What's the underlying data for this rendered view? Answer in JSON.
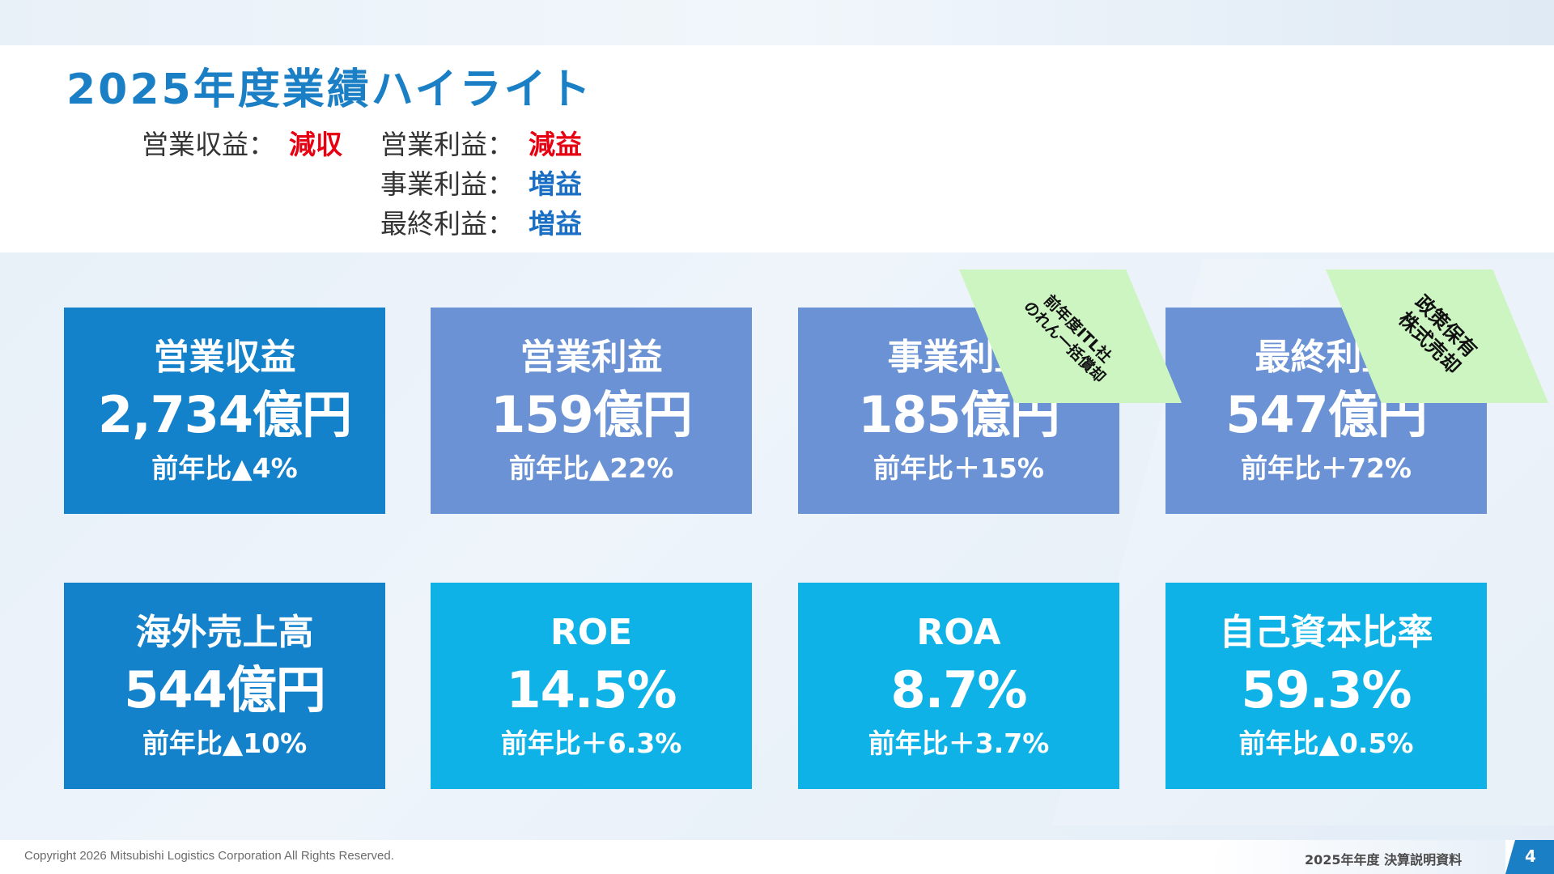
{
  "header": {
    "title": "2025年度業績ハイライト",
    "summary": [
      {
        "label": "営業収益：",
        "value": "減収",
        "status": "down"
      },
      {
        "label": "営業利益：",
        "value": "減益",
        "status": "down"
      },
      {
        "label": "事業利益：",
        "value": "増益",
        "status": "up"
      },
      {
        "label": "最終利益：",
        "value": "増益",
        "status": "up"
      }
    ]
  },
  "cards": [
    {
      "label": "営業収益",
      "value": "2,734億円",
      "change": "前年比▲4%"
    },
    {
      "label": "営業利益",
      "value": "159億円",
      "change": "前年比▲22%"
    },
    {
      "label": "事業利益",
      "value": "185億円",
      "change": "前年比＋15%"
    },
    {
      "label": "最終利益",
      "value": "547億円",
      "change": "前年比＋72%"
    },
    {
      "label": "海外売上高",
      "value": "544億円",
      "change": "前年比▲10%"
    },
    {
      "label": "ROE",
      "value": "14.5%",
      "change": "前年比＋6.3%"
    },
    {
      "label": "ROA",
      "value": "8.7%",
      "change": "前年比＋3.7%"
    },
    {
      "label": "自己資本比率",
      "value": "59.3%",
      "change": "前年比▲0.5%"
    }
  ],
  "ribbons": [
    {
      "line1": "前年度ITL社",
      "line2": "のれん一括償却"
    },
    {
      "line1": "政策保有",
      "line2": "株式売却"
    }
  ],
  "footer": {
    "copyright": "Copyright 2026 Mitsubishi Logistics Corporation All Rights Reserved.",
    "doc_name": "2025年年度 決算説明資料",
    "page": "4"
  },
  "colors": {
    "title": "#1a7fc4",
    "decrease": "#e60012",
    "increase": "#1a6fc4",
    "card_dark": "#1481cb",
    "card_mid": "#6a92d4",
    "card_light": "#0eb2e6",
    "ribbon": "#ccf5c2"
  }
}
